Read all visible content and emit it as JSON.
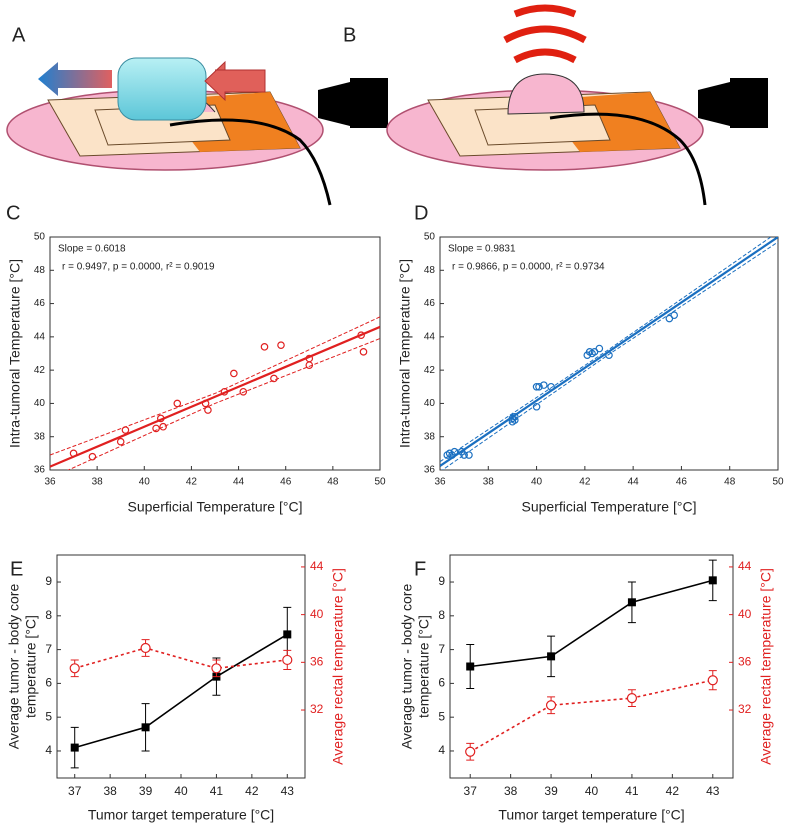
{
  "diagram_labels": [
    "A",
    "B"
  ],
  "chart_data": [
    {
      "type": "scatter",
      "panel": "C",
      "xlabel": "Superficial Temperature [°C]",
      "ylabel": "Intra-tumoral Temperature [°C]",
      "annotations": [
        "Slope = 0.6018",
        "r = 0.9497, p = 0.0000, r² = 0.9019"
      ],
      "xlim": [
        36,
        50
      ],
      "xticks": [
        36,
        38,
        40,
        42,
        44,
        46,
        48,
        50
      ],
      "ylim": [
        36,
        50
      ],
      "yticks": [
        36,
        38,
        40,
        42,
        44,
        46,
        48,
        50
      ],
      "series": [
        {
          "color": "#e02020",
          "marker": "circle",
          "x": [
            37,
            37.8,
            39,
            39.2,
            40.5,
            40.7,
            40.8,
            41.4,
            42.6,
            42.7,
            43.4,
            43.8,
            44.2,
            45.1,
            45.5,
            45.8,
            47,
            47,
            49.2,
            49.3
          ],
          "values": [
            37,
            36.8,
            37.7,
            38.4,
            38.5,
            39.1,
            38.6,
            40,
            40,
            39.6,
            40.7,
            41.8,
            40.7,
            43.4,
            41.5,
            43.5,
            42.3,
            42.7,
            44.1,
            43.1
          ]
        },
        {
          "color": "#e02020",
          "style": "solid",
          "x": [
            36,
            50
          ],
          "values": [
            36.2,
            44.6
          ]
        },
        {
          "color": "#e02020",
          "style": "dashed",
          "x": [
            36,
            43,
            50
          ],
          "values": [
            36.9,
            40.6,
            45.2
          ]
        },
        {
          "color": "#e02020",
          "style": "dashed",
          "x": [
            36,
            43,
            50
          ],
          "values": [
            35.5,
            40.0,
            43.9
          ]
        }
      ]
    },
    {
      "type": "scatter",
      "panel": "D",
      "xlabel": "Superficial Temperature [°C]",
      "ylabel": "Intra-tumoral Temperature [°C]",
      "annotations": [
        "Slope = 0.9831",
        "r = 0.9866, p = 0.0000, r² = 0.9734"
      ],
      "xlim": [
        36,
        50
      ],
      "xticks": [
        36,
        38,
        40,
        42,
        44,
        46,
        48,
        50
      ],
      "ylim": [
        36,
        50
      ],
      "yticks": [
        36,
        38,
        40,
        42,
        44,
        46,
        48,
        50
      ],
      "series": [
        {
          "color": "#1a6fc0",
          "marker": "circle",
          "x": [
            36.3,
            36.4,
            36.5,
            36.6,
            36.9,
            37,
            37.2,
            39,
            39,
            39.1,
            39.1,
            40,
            40,
            40.1,
            40.3,
            40.6,
            42.1,
            42.2,
            42.3,
            42.4,
            42.6,
            43,
            45.5,
            45.7
          ],
          "values": [
            36.9,
            37,
            36.9,
            37.1,
            37.1,
            36.9,
            36.9,
            38.9,
            39.1,
            39,
            39.2,
            39.8,
            41,
            41,
            41.1,
            41,
            42.9,
            43.1,
            43,
            43.1,
            43.3,
            42.9,
            45.1,
            45.3
          ]
        },
        {
          "color": "#1a6fc0",
          "style": "solid",
          "x": [
            36,
            50
          ],
          "values": [
            36.24,
            50
          ]
        },
        {
          "color": "#1a6fc0",
          "style": "dashed",
          "x": [
            36,
            43,
            50
          ],
          "values": [
            36.5,
            43.25,
            50.3
          ]
        },
        {
          "color": "#1a6fc0",
          "style": "dashed",
          "x": [
            36,
            43,
            50
          ],
          "values": [
            35.9,
            42.95,
            49.7
          ]
        }
      ]
    },
    {
      "type": "line",
      "panel": "E",
      "xlabel": "Tumor target temperature [°C]",
      "ylabel": [
        "Average tumor - body core",
        "temperature [°C]"
      ],
      "y2label": "Average rectal temperature [°C]",
      "x": [
        37,
        39,
        41,
        43
      ],
      "xlim": [
        36.5,
        43.5
      ],
      "xticks": [
        37,
        38,
        39,
        40,
        41,
        42,
        43
      ],
      "ylim": [
        3.2,
        9.8
      ],
      "yticks": [
        4,
        5,
        6,
        7,
        8,
        9
      ],
      "y2lim": [
        26.3,
        45
      ],
      "y2ticks": [
        32,
        36,
        40,
        44
      ],
      "series": [
        {
          "color": "#000000",
          "marker": "square",
          "style": "solid",
          "values": [
            4.1,
            4.7,
            6.2,
            7.45
          ],
          "errors": [
            0.6,
            0.7,
            0.55,
            0.8
          ]
        },
        {
          "color": "#e02020",
          "marker": "circle",
          "style": "dotted",
          "axis": "y2",
          "values": [
            35.5,
            37.2,
            35.5,
            36.2
          ],
          "errors": [
            0.7,
            0.7,
            0.7,
            0.8
          ]
        }
      ]
    },
    {
      "type": "line",
      "panel": "F",
      "xlabel": "Tumor target temperature [°C]",
      "ylabel": [
        "Average tumor - body core",
        "temperature [°C]"
      ],
      "y2label": "Average rectal temperature [°C]",
      "x": [
        37,
        39,
        41,
        43
      ],
      "xlim": [
        36.5,
        43.5
      ],
      "xticks": [
        37,
        38,
        39,
        40,
        41,
        42,
        43
      ],
      "ylim": [
        3.2,
        9.8
      ],
      "yticks": [
        4,
        5,
        6,
        7,
        8,
        9
      ],
      "y2lim": [
        26.3,
        45
      ],
      "y2ticks": [
        32,
        36,
        40,
        44
      ],
      "series": [
        {
          "color": "#000000",
          "marker": "square",
          "style": "solid",
          "values": [
            6.5,
            6.8,
            8.4,
            9.05
          ],
          "errors": [
            0.65,
            0.6,
            0.6,
            0.6
          ]
        },
        {
          "color": "#e02020",
          "marker": "circle",
          "style": "dotted",
          "axis": "y2",
          "values": [
            28.5,
            32.4,
            33.0,
            34.5
          ],
          "errors": [
            0.7,
            0.7,
            0.7,
            0.8
          ]
        }
      ]
    }
  ]
}
